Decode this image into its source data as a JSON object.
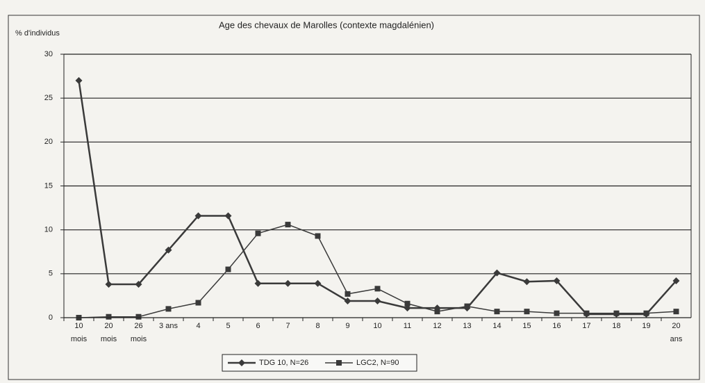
{
  "chart_data": {
    "type": "line",
    "title": "Age des chevaux de Marolles (contexte magdalénien)",
    "y_label": "% d'individus",
    "categories": [
      "10\nmois",
      "20\nmois",
      "26\nmois",
      "3 ans",
      "4",
      "5",
      "6",
      "7",
      "8",
      "9",
      "10",
      "11",
      "12",
      "13",
      "14",
      "15",
      "16",
      "17",
      "18",
      "19",
      "20\nans"
    ],
    "series": [
      {
        "name": "TDG 10, N=26",
        "color": "#3a3a3a",
        "marker": "diamond",
        "values": [
          27,
          3.8,
          3.8,
          7.7,
          11.6,
          11.6,
          3.9,
          3.9,
          3.9,
          1.9,
          1.9,
          1.1,
          1.1,
          1.1,
          5.1,
          4.1,
          4.2,
          0.4,
          0.4,
          0.4,
          4.2
        ]
      },
      {
        "name": "LGC2, N=90",
        "color": "#3a3a3a",
        "marker": "square",
        "values": [
          0,
          0.1,
          0.1,
          1,
          1.7,
          5.5,
          9.6,
          10.6,
          9.3,
          2.7,
          3.3,
          1.6,
          0.7,
          1.3,
          0.7,
          0.7,
          0.5,
          0.5,
          0.5,
          0.5,
          0.7
        ]
      }
    ],
    "ylim": [
      0,
      30
    ],
    "yticks": [
      0,
      5,
      10,
      15,
      20,
      25,
      30
    ],
    "grid": true
  }
}
